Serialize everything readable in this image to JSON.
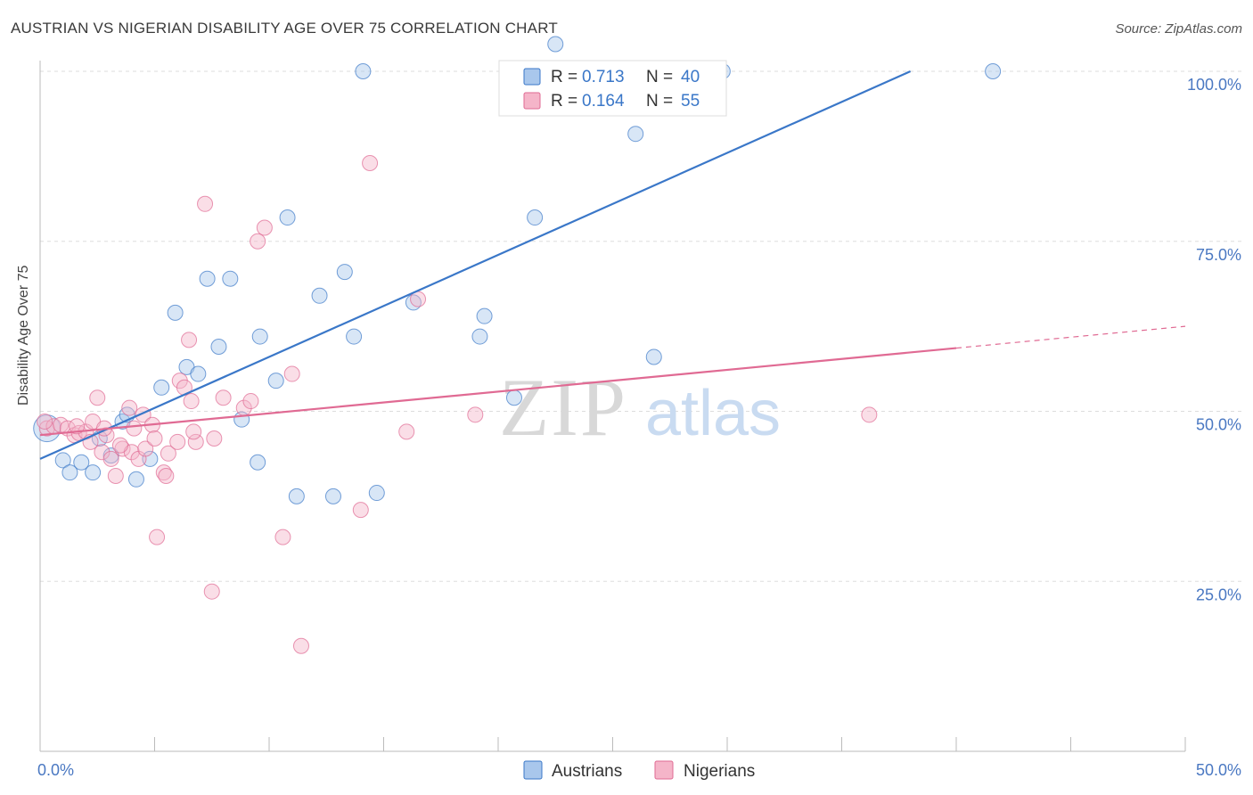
{
  "header": {
    "title": "AUSTRIAN VS NIGERIAN DISABILITY AGE OVER 75 CORRELATION CHART",
    "source": "Source: ZipAtlas.com"
  },
  "colors": {
    "blue": "#3a77c8",
    "blue_fill": "#a9c7ec",
    "pink": "#e06a93",
    "pink_fill": "#f5b5c9",
    "grid": "#dddddd",
    "tick_label": "#4a78c2"
  },
  "legend_top": [
    {
      "series": "Austrians",
      "r_label": "R = ",
      "r_value": "0.713",
      "n_label": "N = ",
      "n_value": "40"
    },
    {
      "series": "Nigerians",
      "r_label": "R = ",
      "r_value": "0.164",
      "n_label": "N = ",
      "n_value": "55"
    }
  ],
  "legend_bottom": [
    "Austrians",
    "Nigerians"
  ],
  "watermark": {
    "zip": "ZIP",
    "atlas": "atlas"
  },
  "chart_data": {
    "type": "scatter",
    "title": "AUSTRIAN VS NIGERIAN DISABILITY AGE OVER 75 CORRELATION CHART",
    "xlabel": "",
    "ylabel": "Disability Age Over 75",
    "xlim": [
      0,
      50
    ],
    "ylim": [
      0,
      105
    ],
    "x_tick_labels": [
      {
        "value": 0,
        "label": "0.0%"
      },
      {
        "value": 50,
        "label": "50.0%"
      }
    ],
    "y_tick_labels": [
      {
        "value": 25,
        "label": "25.0%"
      },
      {
        "value": 50,
        "label": "50.0%"
      },
      {
        "value": 75,
        "label": "75.0%"
      },
      {
        "value": 100,
        "label": "100.0%"
      }
    ],
    "grid": true,
    "series": [
      {
        "name": "Austrians",
        "points": [
          [
            0.3,
            47.5
          ],
          [
            1.0,
            42.8
          ],
          [
            1.3,
            41.0
          ],
          [
            1.8,
            42.5
          ],
          [
            2.3,
            41.0
          ],
          [
            2.6,
            46.0
          ],
          [
            3.1,
            43.5
          ],
          [
            3.6,
            48.5
          ],
          [
            3.8,
            49.5
          ],
          [
            4.2,
            40.0
          ],
          [
            4.8,
            43.0
          ],
          [
            5.3,
            53.5
          ],
          [
            5.9,
            64.5
          ],
          [
            6.4,
            56.5
          ],
          [
            6.9,
            55.5
          ],
          [
            7.3,
            69.5
          ],
          [
            7.8,
            59.5
          ],
          [
            8.3,
            69.5
          ],
          [
            8.8,
            48.8
          ],
          [
            9.5,
            42.5
          ],
          [
            9.6,
            61.0
          ],
          [
            10.3,
            54.5
          ],
          [
            10.8,
            78.5
          ],
          [
            11.2,
            37.5
          ],
          [
            12.2,
            67.0
          ],
          [
            12.8,
            37.5
          ],
          [
            13.3,
            70.5
          ],
          [
            13.7,
            61.0
          ],
          [
            14.1,
            100.0
          ],
          [
            14.7,
            38.0
          ],
          [
            16.3,
            66.0
          ],
          [
            19.2,
            61.0
          ],
          [
            19.4,
            64.0
          ],
          [
            20.7,
            52.0
          ],
          [
            21.6,
            78.5
          ],
          [
            26.0,
            90.8
          ],
          [
            26.8,
            58.0
          ],
          [
            29.8,
            100.0
          ],
          [
            41.6,
            100.0
          ],
          [
            22.5,
            104.0
          ]
        ],
        "trend": {
          "x0": 0,
          "y0": 43,
          "x1": 38.0,
          "y1": 100.0,
          "color": "#3a77c8"
        }
      },
      {
        "name": "Nigerians",
        "points": [
          [
            0.3,
            47.5
          ],
          [
            0.6,
            47.8
          ],
          [
            0.9,
            48.0
          ],
          [
            1.2,
            47.5
          ],
          [
            1.5,
            46.5
          ],
          [
            1.7,
            46.8
          ],
          [
            2.0,
            47.0
          ],
          [
            2.2,
            45.5
          ],
          [
            2.3,
            48.5
          ],
          [
            2.5,
            52.0
          ],
          [
            2.7,
            44.0
          ],
          [
            2.9,
            46.5
          ],
          [
            3.1,
            43.0
          ],
          [
            3.3,
            40.5
          ],
          [
            3.6,
            44.5
          ],
          [
            3.9,
            50.5
          ],
          [
            4.0,
            44.0
          ],
          [
            4.3,
            43.0
          ],
          [
            4.5,
            49.5
          ],
          [
            4.6,
            44.5
          ],
          [
            4.9,
            48.0
          ],
          [
            5.0,
            46.0
          ],
          [
            5.1,
            31.5
          ],
          [
            5.4,
            41.0
          ],
          [
            5.5,
            40.5
          ],
          [
            5.6,
            43.8
          ],
          [
            6.0,
            45.5
          ],
          [
            6.1,
            54.5
          ],
          [
            6.3,
            53.5
          ],
          [
            6.5,
            60.5
          ],
          [
            6.6,
            51.5
          ],
          [
            6.8,
            45.5
          ],
          [
            7.2,
            80.5
          ],
          [
            7.5,
            23.5
          ],
          [
            7.6,
            46.0
          ],
          [
            8.0,
            52.0
          ],
          [
            8.9,
            50.5
          ],
          [
            9.2,
            51.5
          ],
          [
            9.5,
            75.0
          ],
          [
            9.8,
            77.0
          ],
          [
            10.6,
            31.5
          ],
          [
            11.0,
            55.5
          ],
          [
            11.4,
            15.5
          ],
          [
            14.0,
            35.5
          ],
          [
            14.4,
            86.5
          ],
          [
            16.0,
            47.0
          ],
          [
            16.5,
            66.5
          ],
          [
            19.0,
            49.5
          ],
          [
            36.2,
            49.5
          ],
          [
            0.2,
            48.5
          ],
          [
            1.6,
            47.8
          ],
          [
            2.8,
            47.5
          ],
          [
            3.5,
            45.0
          ],
          [
            6.7,
            47.0
          ],
          [
            4.1,
            47.5
          ]
        ],
        "trend": {
          "x0": 0,
          "y0": 46.5,
          "x1": 40.0,
          "y1": 59.3,
          "x_dash_end": 50,
          "y_dash_end": 62.5,
          "color": "#e06a93"
        }
      }
    ]
  }
}
